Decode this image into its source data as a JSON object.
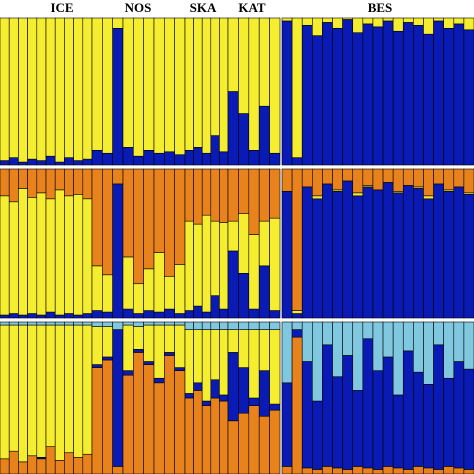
{
  "chart_data": {
    "type": "bar",
    "stacked": true,
    "ylim": [
      0,
      100
    ],
    "groups": [
      "ICE",
      "NOS",
      "SKA",
      "KAT",
      "BES"
    ],
    "panels": [
      {
        "colors": [
          "#0a1ab4",
          "#f5ee30"
        ],
        "values": [
          [
            [
              3,
              97
            ],
            [
              5,
              95
            ],
            [
              2,
              98
            ],
            [
              4,
              96
            ],
            [
              3,
              97
            ],
            [
              6,
              94
            ],
            [
              2,
              98
            ],
            [
              5,
              95
            ],
            [
              3,
              97
            ],
            [
              4,
              96
            ]
          ],
          [
            [
              10,
              90
            ],
            [
              8,
              92
            ],
            [
              93,
              7
            ],
            [
              12,
              88
            ],
            [
              6,
              94
            ],
            [
              10,
              90
            ],
            [
              8,
              92
            ],
            [
              9,
              91
            ],
            [
              7,
              93
            ]
          ],
          [
            [
              10,
              90
            ],
            [
              12,
              88
            ],
            [
              8,
              92
            ],
            [
              20,
              80
            ],
            [
              9,
              91
            ]
          ],
          [
            [
              50,
              50
            ],
            [
              35,
              65
            ],
            [
              10,
              90
            ],
            [
              40,
              60
            ],
            [
              8,
              92
            ]
          ],
          [
            [
              98,
              2
            ],
            [
              5,
              95
            ],
            [
              95,
              5
            ],
            [
              88,
              12
            ],
            [
              97,
              3
            ],
            [
              93,
              7
            ],
            [
              99,
              1
            ],
            [
              90,
              10
            ],
            [
              96,
              4
            ],
            [
              94,
              6
            ],
            [
              98,
              2
            ],
            [
              91,
              9
            ],
            [
              97,
              3
            ],
            [
              95,
              5
            ],
            [
              89,
              11
            ],
            [
              98,
              2
            ],
            [
              93,
              7
            ],
            [
              96,
              4
            ],
            [
              92,
              8
            ]
          ]
        ]
      },
      {
        "colors": [
          "#0a1ab4",
          "#f5ee30",
          "#e8821c"
        ],
        "values": [
          [
            [
              2,
              80,
              18
            ],
            [
              3,
              75,
              22
            ],
            [
              2,
              85,
              13
            ],
            [
              3,
              78,
              19
            ],
            [
              2,
              82,
              16
            ],
            [
              4,
              76,
              20
            ],
            [
              2,
              84,
              14
            ],
            [
              3,
              79,
              18
            ],
            [
              2,
              81,
              17
            ],
            [
              3,
              77,
              20
            ]
          ],
          [
            [
              5,
              30,
              65
            ],
            [
              4,
              25,
              71
            ],
            [
              90,
              0,
              10
            ],
            [
              6,
              35,
              59
            ],
            [
              3,
              20,
              77
            ],
            [
              5,
              28,
              67
            ],
            [
              4,
              40,
              56
            ],
            [
              6,
              22,
              72
            ],
            [
              3,
              33,
              64
            ]
          ],
          [
            [
              5,
              60,
              35
            ],
            [
              8,
              55,
              37
            ],
            [
              4,
              65,
              31
            ],
            [
              15,
              50,
              35
            ],
            [
              6,
              58,
              36
            ]
          ],
          [
            [
              45,
              20,
              35
            ],
            [
              30,
              40,
              30
            ],
            [
              6,
              50,
              44
            ],
            [
              35,
              30,
              35
            ],
            [
              5,
              62,
              33
            ]
          ],
          [
            [
              85,
              0,
              15
            ],
            [
              3,
              2,
              95
            ],
            [
              88,
              0,
              12
            ],
            [
              80,
              2,
              18
            ],
            [
              90,
              0,
              10
            ],
            [
              85,
              1,
              14
            ],
            [
              92,
              0,
              8
            ],
            [
              82,
              2,
              16
            ],
            [
              88,
              1,
              11
            ],
            [
              86,
              0,
              14
            ],
            [
              91,
              0,
              9
            ],
            [
              84,
              1,
              15
            ],
            [
              89,
              0,
              11
            ],
            [
              87,
              1,
              12
            ],
            [
              80,
              2,
              18
            ],
            [
              90,
              0,
              10
            ],
            [
              85,
              1,
              14
            ],
            [
              88,
              0,
              12
            ],
            [
              83,
              1,
              16
            ]
          ]
        ]
      },
      {
        "colors": [
          "#e8821c",
          "#0a1ab4",
          "#f5ee30",
          "#80c8e0"
        ],
        "values": [
          [
            [
              10,
              0,
              88,
              2
            ],
            [
              15,
              0,
              83,
              2
            ],
            [
              8,
              0,
              90,
              2
            ],
            [
              12,
              0,
              86,
              2
            ],
            [
              10,
              1,
              87,
              2
            ],
            [
              18,
              0,
              80,
              2
            ],
            [
              9,
              0,
              89,
              2
            ],
            [
              14,
              0,
              84,
              2
            ],
            [
              11,
              0,
              87,
              2
            ],
            [
              13,
              0,
              85,
              2
            ]
          ],
          [
            [
              70,
              2,
              25,
              3
            ],
            [
              75,
              2,
              20,
              3
            ],
            [
              5,
              90,
              0,
              5
            ],
            [
              65,
              3,
              30,
              2
            ],
            [
              80,
              2,
              15,
              3
            ],
            [
              72,
              2,
              24,
              2
            ],
            [
              60,
              3,
              35,
              2
            ],
            [
              78,
              2,
              18,
              2
            ],
            [
              68,
              2,
              28,
              2
            ]
          ],
          [
            [
              50,
              3,
              42,
              5
            ],
            [
              55,
              5,
              35,
              5
            ],
            [
              45,
              3,
              47,
              5
            ],
            [
              50,
              12,
              33,
              5
            ],
            [
              48,
              4,
              43,
              5
            ]
          ],
          [
            [
              35,
              45,
              15,
              5
            ],
            [
              40,
              30,
              25,
              5
            ],
            [
              45,
              5,
              45,
              5
            ],
            [
              38,
              30,
              27,
              5
            ],
            [
              42,
              4,
              49,
              5
            ]
          ],
          [
            [
              5,
              55,
              0,
              40
            ],
            [
              90,
              5,
              0,
              5
            ],
            [
              4,
              70,
              0,
              26
            ],
            [
              3,
              45,
              0,
              52
            ],
            [
              5,
              80,
              0,
              15
            ],
            [
              4,
              60,
              0,
              36
            ],
            [
              3,
              75,
              0,
              22
            ],
            [
              5,
              50,
              0,
              45
            ],
            [
              4,
              85,
              0,
              11
            ],
            [
              3,
              65,
              0,
              32
            ],
            [
              5,
              72,
              0,
              23
            ],
            [
              4,
              48,
              0,
              48
            ],
            [
              3,
              78,
              0,
              19
            ],
            [
              5,
              62,
              0,
              33
            ],
            [
              4,
              55,
              0,
              41
            ],
            [
              3,
              82,
              0,
              15
            ],
            [
              5,
              58,
              0,
              37
            ],
            [
              4,
              70,
              0,
              26
            ],
            [
              3,
              66,
              0,
              31
            ]
          ]
        ]
      }
    ]
  }
}
